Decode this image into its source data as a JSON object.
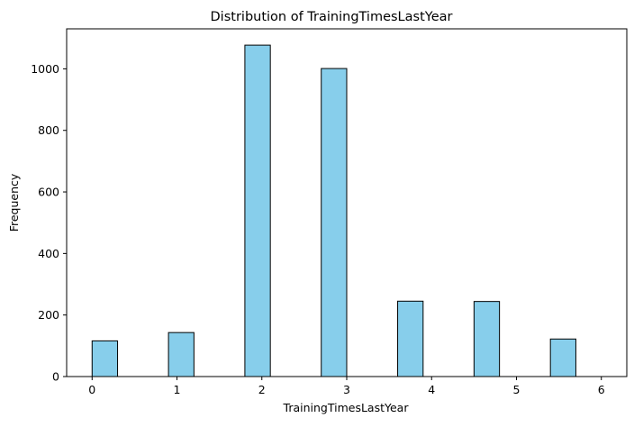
{
  "chart_data": {
    "type": "bar",
    "title": "Distribution of TrainingTimesLastYear",
    "xlabel": "TrainingTimesLastYear",
    "ylabel": "Frequency",
    "bin_edges": [
      0,
      0.3,
      0.6,
      0.9,
      1.2,
      1.5,
      1.8,
      2.1,
      2.4,
      2.7,
      3.0,
      3.3,
      3.6,
      3.9,
      4.2,
      4.5,
      4.8,
      5.1,
      5.4,
      5.7,
      6.0
    ],
    "values": [
      116,
      0,
      0,
      143,
      0,
      0,
      1077,
      0,
      0,
      1001,
      0,
      0,
      245,
      0,
      0,
      244,
      0,
      0,
      122,
      0
    ],
    "xlim": [
      -0.3,
      6.3
    ],
    "ylim": [
      0,
      1130
    ],
    "xticks": [
      "0",
      "1",
      "2",
      "3",
      "4",
      "5",
      "6"
    ],
    "yticks": [
      "0",
      "200",
      "400",
      "600",
      "800",
      "1000"
    ],
    "bar_color": "#87ceeb",
    "edge_color": "#000000",
    "grid": false,
    "legend": "none"
  }
}
